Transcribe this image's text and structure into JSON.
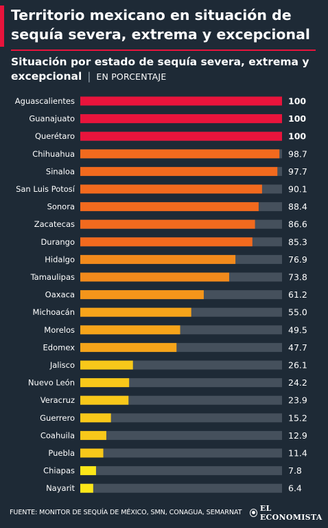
{
  "header": {
    "title": "Territorio mexicano en situación de sequía severa, extrema y excepcional",
    "subtitle_strong": "Situación por estado de sequía severa, extrema y excepcional",
    "subtitle_separator": "|",
    "subtitle_unit": "EN PORCENTAJE"
  },
  "footer": {
    "source": "FUENTE: MONITOR DE SEQUÍA DE MÉXICO, SMN, CONAGUA, SEMARNAT",
    "brand": "EL ECONOMISTA"
  },
  "colors": {
    "background": "#1e2a36",
    "accent": "#e8143c",
    "track": "#45505c",
    "bar_scale": [
      "#e8143c",
      "#f26a1e",
      "#f4951a",
      "#f8c81a",
      "#fce619"
    ]
  },
  "chart_data": {
    "type": "bar",
    "orientation": "horizontal",
    "xlim": [
      0,
      100
    ],
    "categories": [
      "Aguascalientes",
      "Guanajuato",
      "Querétaro",
      "Chihuahua",
      "Sinaloa",
      "San Luis Potosí",
      "Sonora",
      "Zacatecas",
      "Durango",
      "Hidalgo",
      "Tamaulipas",
      "Oaxaca",
      "Michoacán",
      "Morelos",
      "Edomex",
      "Jalisco",
      "Nuevo León",
      "Veracruz",
      "Guerrero",
      "Coahuila",
      "Puebla",
      "Chiapas",
      "Nayarit"
    ],
    "values": [
      100,
      100,
      100,
      98.7,
      97.7,
      90.1,
      88.4,
      86.6,
      85.3,
      76.9,
      73.8,
      61.2,
      55.0,
      49.5,
      47.7,
      26.1,
      24.2,
      23.9,
      15.2,
      12.9,
      11.4,
      7.8,
      6.4
    ],
    "value_labels": [
      "100",
      "100",
      "100",
      "98.7",
      "97.7",
      "90.1",
      "88.4",
      "86.6",
      "85.3",
      "76.9",
      "73.8",
      "61.2",
      "55.0",
      "49.5",
      "47.7",
      "26.1",
      "24.2",
      "23.9",
      "15.2",
      "12.9",
      "11.4",
      "7.8",
      "6.4"
    ],
    "bar_colors": [
      "#e8143c",
      "#e8143c",
      "#e8143c",
      "#f26a1e",
      "#f26a1e",
      "#f26a1e",
      "#f26a1e",
      "#f26a1e",
      "#f26a1e",
      "#f28a1c",
      "#f28a1c",
      "#f4951a",
      "#f6a41a",
      "#f6a41a",
      "#f6a41a",
      "#f8c81a",
      "#f8c81a",
      "#f8c81a",
      "#f8c81a",
      "#f8c81a",
      "#f8c81a",
      "#fce619",
      "#fce619"
    ],
    "bold_value_labels": [
      true,
      true,
      true,
      false,
      false,
      false,
      false,
      false,
      false,
      false,
      false,
      false,
      false,
      false,
      false,
      false,
      false,
      false,
      false,
      false,
      false,
      false,
      false
    ],
    "grid": false
  }
}
